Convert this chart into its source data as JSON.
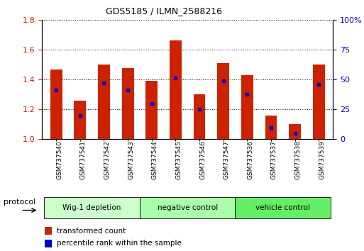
{
  "title": "GDS5185 / ILMN_2588216",
  "samples": [
    "GSM737540",
    "GSM737541",
    "GSM737542",
    "GSM737543",
    "GSM737544",
    "GSM737545",
    "GSM737546",
    "GSM737547",
    "GSM737536",
    "GSM737537",
    "GSM737538",
    "GSM737539"
  ],
  "bar_values": [
    1.47,
    1.26,
    1.5,
    1.48,
    1.39,
    1.665,
    1.3,
    1.51,
    1.43,
    1.16,
    1.1,
    1.5
  ],
  "percentile_values": [
    1.33,
    1.16,
    1.38,
    1.33,
    1.24,
    1.41,
    1.2,
    1.39,
    1.3,
    1.08,
    1.04,
    1.37
  ],
  "bar_color": "#cc2200",
  "percentile_color": "#0000cc",
  "bar_bottom": 1.0,
  "ylim_left": [
    1.0,
    1.8
  ],
  "ylim_right": [
    0,
    100
  ],
  "yticks_left": [
    1.0,
    1.2,
    1.4,
    1.6,
    1.8
  ],
  "yticks_right": [
    0,
    25,
    50,
    75,
    100
  ],
  "grid_dotted_at": [
    1.2,
    1.4,
    1.6,
    1.8
  ],
  "groups": [
    {
      "label": "Wig-1 depletion",
      "start": 0,
      "end": 3,
      "color": "#ccffcc"
    },
    {
      "label": "negative control",
      "start": 4,
      "end": 7,
      "color": "#aaffaa"
    },
    {
      "label": "vehicle control",
      "start": 8,
      "end": 11,
      "color": "#66ee66"
    }
  ],
  "protocol_label": "protocol",
  "legend_items": [
    {
      "label": "transformed count",
      "color": "#cc2200"
    },
    {
      "label": "percentile rank within the sample",
      "color": "#0000cc"
    }
  ],
  "bar_width": 0.5,
  "background_color": "#ffffff",
  "tick_label_color_left": "#cc2200",
  "tick_label_color_right": "#0000cc"
}
